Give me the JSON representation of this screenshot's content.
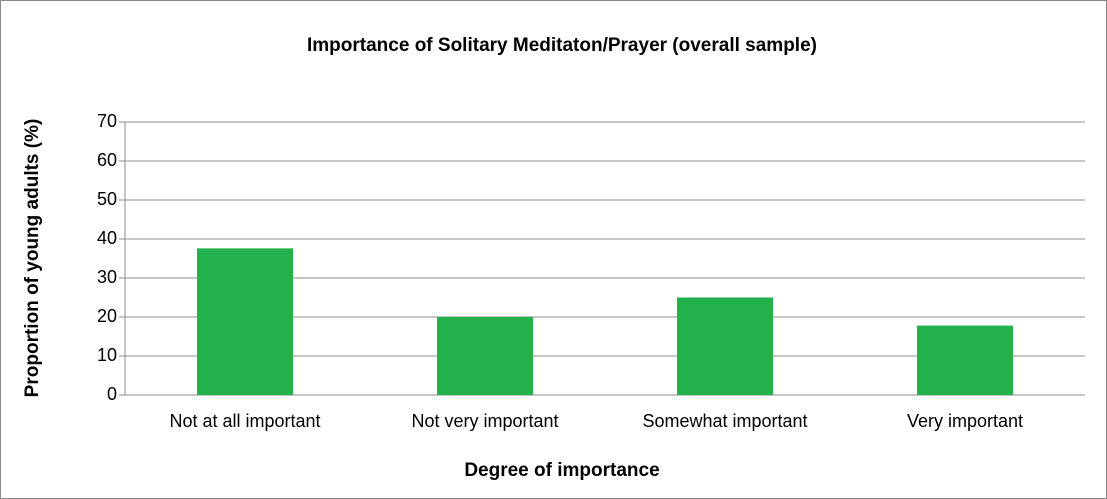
{
  "chart_data": {
    "type": "bar",
    "title": "Importance of Solitary Meditaton/Prayer (overall sample)",
    "x_label": "Degree of importance",
    "y_label": "Proportion of young adults (%)",
    "categories": [
      "Not at all important",
      "Not very important",
      "Somewhat important",
      "Very important"
    ],
    "values": [
      37.6,
      20,
      25,
      17.8
    ],
    "color": "#23b14d",
    "ylim": [
      0,
      70
    ],
    "yticks": [
      0,
      10,
      20,
      30,
      40,
      50,
      60,
      70
    ],
    "grid": true
  }
}
